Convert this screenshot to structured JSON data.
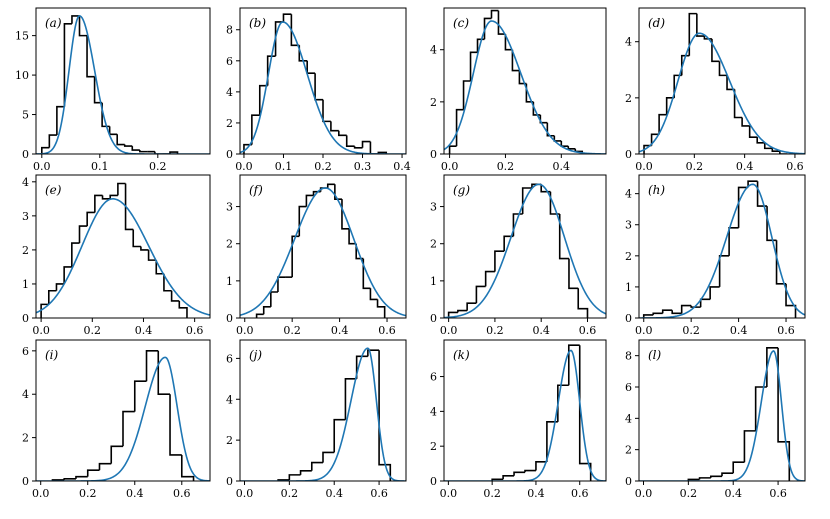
{
  "colors": {
    "histogram": "#000000",
    "fit_curve": "#1f77b4",
    "background": "#ffffff"
  },
  "chart_data": [
    {
      "type": "histogram",
      "label": "(a)",
      "xlim": [
        -0.01,
        0.29
      ],
      "ylim": [
        0,
        18.5
      ],
      "xticks": [
        0.0,
        0.1,
        0.2
      ],
      "xtick_labels": [
        "0.0",
        "0.1",
        "0.2"
      ],
      "yticks": [
        0,
        5,
        10,
        15
      ],
      "ytick_labels": [
        "0",
        "5",
        "10",
        "15"
      ],
      "bin_edges": [
        0.0,
        0.013,
        0.026,
        0.039,
        0.052,
        0.065,
        0.078,
        0.091,
        0.104,
        0.117,
        0.13,
        0.143,
        0.156,
        0.169,
        0.182,
        0.195,
        0.208,
        0.221,
        0.234
      ],
      "counts": [
        0.8,
        2.4,
        6.0,
        16.5,
        17.5,
        15.0,
        9.8,
        6.5,
        3.5,
        2.5,
        1.2,
        1.0,
        0.5,
        0.3,
        0.3,
        0.0,
        0.0,
        0.25
      ],
      "fit": {
        "mu": 0.065,
        "sigma_left": 0.018,
        "sigma_right": 0.026,
        "peak": 17.5
      }
    },
    {
      "type": "histogram",
      "label": "(b)",
      "xlim": [
        -0.01,
        0.41
      ],
      "ylim": [
        0,
        9.4
      ],
      "xticks": [
        0.0,
        0.1,
        0.2,
        0.3,
        0.4
      ],
      "xtick_labels": [
        "0.0",
        "0.1",
        "0.2",
        "0.3",
        "0.4"
      ],
      "yticks": [
        0,
        2,
        4,
        6,
        8
      ],
      "ytick_labels": [
        "0",
        "2",
        "4",
        "6",
        "8"
      ],
      "bin_edges": [
        0.0,
        0.02,
        0.04,
        0.06,
        0.08,
        0.1,
        0.12,
        0.14,
        0.16,
        0.18,
        0.2,
        0.22,
        0.24,
        0.26,
        0.28,
        0.3,
        0.32,
        0.34,
        0.36
      ],
      "counts": [
        0.6,
        2.5,
        4.4,
        6.3,
        8.5,
        9.0,
        7.0,
        6.0,
        5.2,
        3.5,
        2.1,
        1.5,
        1.2,
        0.5,
        0.4,
        0.8,
        0.0,
        0.1
      ],
      "fit": {
        "mu": 0.098,
        "sigma_left": 0.036,
        "sigma_right": 0.062,
        "peak": 8.5
      }
    },
    {
      "type": "histogram",
      "label": "(c)",
      "xlim": [
        -0.02,
        0.56
      ],
      "ylim": [
        0,
        5.6
      ],
      "xticks": [
        0.0,
        0.2,
        0.4
      ],
      "xtick_labels": [
        "0.0",
        "0.2",
        "0.4"
      ],
      "yticks": [
        0,
        2,
        4
      ],
      "ytick_labels": [
        "0",
        "2",
        "4"
      ],
      "bin_edges": [
        0.0,
        0.025,
        0.05,
        0.075,
        0.1,
        0.125,
        0.15,
        0.175,
        0.2,
        0.225,
        0.25,
        0.275,
        0.3,
        0.325,
        0.35,
        0.375,
        0.4,
        0.425,
        0.45,
        0.475
      ],
      "counts": [
        0.3,
        1.7,
        2.8,
        3.9,
        4.4,
        5.2,
        5.5,
        4.6,
        4.0,
        3.2,
        2.7,
        2.0,
        1.5,
        1.2,
        0.7,
        0.5,
        0.3,
        0.2,
        0.1
      ],
      "fit": {
        "mu": 0.15,
        "sigma_left": 0.065,
        "sigma_right": 0.105,
        "peak": 5.1
      }
    },
    {
      "type": "histogram",
      "label": "(d)",
      "xlim": [
        -0.02,
        0.64
      ],
      "ylim": [
        0,
        5.2
      ],
      "xticks": [
        0.0,
        0.2,
        0.4,
        0.6
      ],
      "xtick_labels": [
        "0.0",
        "0.2",
        "0.4",
        "0.6"
      ],
      "yticks": [
        0,
        2,
        4
      ],
      "ytick_labels": [
        "0",
        "2",
        "4"
      ],
      "bin_edges": [
        0.0,
        0.03,
        0.06,
        0.09,
        0.12,
        0.15,
        0.18,
        0.21,
        0.24,
        0.27,
        0.3,
        0.33,
        0.36,
        0.39,
        0.42,
        0.45,
        0.48,
        0.51,
        0.54,
        0.57
      ],
      "counts": [
        0.3,
        0.7,
        1.4,
        2.0,
        2.8,
        3.5,
        5.0,
        4.2,
        4.1,
        3.3,
        2.8,
        2.3,
        1.3,
        1.0,
        0.6,
        0.4,
        0.2,
        0.1,
        0.0
      ],
      "fit": {
        "mu": 0.22,
        "sigma_left": 0.085,
        "sigma_right": 0.12,
        "peak": 4.3
      }
    },
    {
      "type": "histogram",
      "label": "(e)",
      "xlim": [
        -0.02,
        0.66
      ],
      "ylim": [
        0,
        4.2
      ],
      "xticks": [
        0.0,
        0.2,
        0.4,
        0.6
      ],
      "xtick_labels": [
        "0.0",
        "0.2",
        "0.4",
        "0.6"
      ],
      "yticks": [
        0,
        1,
        2,
        3,
        4
      ],
      "ytick_labels": [
        "0",
        "1",
        "2",
        "3",
        "4"
      ],
      "bin_edges": [
        0.0,
        0.03,
        0.06,
        0.09,
        0.12,
        0.15,
        0.18,
        0.21,
        0.24,
        0.27,
        0.3,
        0.33,
        0.36,
        0.39,
        0.42,
        0.45,
        0.48,
        0.51,
        0.54,
        0.57
      ],
      "counts": [
        0.4,
        0.8,
        1.0,
        1.5,
        2.2,
        2.7,
        3.1,
        3.6,
        3.5,
        3.6,
        3.95,
        2.6,
        2.1,
        2.0,
        1.7,
        1.3,
        0.8,
        0.5,
        0.3
      ],
      "fit": {
        "mu": 0.28,
        "sigma_left": 0.12,
        "sigma_right": 0.14,
        "peak": 3.5
      }
    },
    {
      "type": "histogram",
      "label": "(f)",
      "xlim": [
        -0.02,
        0.68
      ],
      "ylim": [
        0,
        3.85
      ],
      "xticks": [
        0.0,
        0.2,
        0.4,
        0.6
      ],
      "xtick_labels": [
        "0.0",
        "0.2",
        "0.4",
        "0.6"
      ],
      "yticks": [
        0,
        1,
        2,
        3
      ],
      "ytick_labels": [
        "0",
        "1",
        "2",
        "3"
      ],
      "bin_edges": [
        0.05,
        0.08,
        0.11,
        0.14,
        0.17,
        0.2,
        0.23,
        0.26,
        0.29,
        0.32,
        0.35,
        0.38,
        0.41,
        0.44,
        0.47,
        0.5,
        0.53,
        0.56,
        0.59
      ],
      "counts": [
        0.1,
        0.3,
        0.7,
        1.1,
        1.1,
        2.2,
        3.0,
        3.3,
        3.4,
        3.5,
        3.6,
        3.2,
        2.4,
        2.0,
        1.6,
        0.8,
        0.5,
        0.3
      ],
      "fit": {
        "mu": 0.34,
        "sigma_left": 0.13,
        "sigma_right": 0.12,
        "peak": 3.5
      }
    },
    {
      "type": "histogram",
      "label": "(g)",
      "xlim": [
        -0.02,
        0.68
      ],
      "ylim": [
        0,
        3.85
      ],
      "xticks": [
        0.0,
        0.2,
        0.4,
        0.6
      ],
      "xtick_labels": [
        "0.0",
        "0.2",
        "0.4",
        "0.6"
      ],
      "yticks": [
        0,
        1,
        2,
        3
      ],
      "ytick_labels": [
        "0",
        "1",
        "2",
        "3"
      ],
      "bin_edges": [
        0.0,
        0.04,
        0.08,
        0.12,
        0.16,
        0.2,
        0.24,
        0.28,
        0.32,
        0.36,
        0.4,
        0.44,
        0.48,
        0.52,
        0.56,
        0.6
      ],
      "counts": [
        0.15,
        0.2,
        0.4,
        0.85,
        1.25,
        1.8,
        2.2,
        2.8,
        3.5,
        3.6,
        3.4,
        2.8,
        1.6,
        0.8,
        0.25
      ],
      "fit": {
        "mu": 0.39,
        "sigma_left": 0.12,
        "sigma_right": 0.11,
        "peak": 3.6
      }
    },
    {
      "type": "histogram",
      "label": "(h)",
      "xlim": [
        -0.02,
        0.68
      ],
      "ylim": [
        0,
        4.6
      ],
      "xticks": [
        0.0,
        0.2,
        0.4,
        0.6
      ],
      "xtick_labels": [
        "0.0",
        "0.2",
        "0.4",
        "0.6"
      ],
      "yticks": [
        0,
        1,
        2,
        3,
        4
      ],
      "ytick_labels": [
        "0",
        "1",
        "2",
        "3",
        "4"
      ],
      "bin_edges": [
        0.0,
        0.04,
        0.08,
        0.12,
        0.16,
        0.2,
        0.24,
        0.28,
        0.32,
        0.36,
        0.4,
        0.44,
        0.48,
        0.52,
        0.56,
        0.6,
        0.64
      ],
      "counts": [
        0.1,
        0.15,
        0.25,
        0.15,
        0.4,
        0.35,
        0.6,
        1.0,
        2.0,
        2.9,
        4.2,
        4.4,
        3.6,
        2.5,
        1.1,
        0.4
      ],
      "fit": {
        "mu": 0.46,
        "sigma_left": 0.11,
        "sigma_right": 0.08,
        "peak": 4.3
      }
    },
    {
      "type": "histogram",
      "label": "(i)",
      "xlim": [
        -0.02,
        0.72
      ],
      "ylim": [
        0,
        6.5
      ],
      "xticks": [
        0.0,
        0.2,
        0.4,
        0.6
      ],
      "xtick_labels": [
        "0.0",
        "0.2",
        "0.4",
        "0.6"
      ],
      "yticks": [
        0,
        2,
        4,
        6
      ],
      "ytick_labels": [
        "0",
        "2",
        "4",
        "6"
      ],
      "bin_edges": [
        0.05,
        0.1,
        0.15,
        0.2,
        0.25,
        0.3,
        0.35,
        0.4,
        0.45,
        0.5,
        0.55,
        0.6,
        0.65
      ],
      "counts": [
        0.05,
        0.1,
        0.2,
        0.5,
        0.8,
        1.6,
        3.2,
        4.6,
        6.0,
        4.0,
        1.2,
        0.2
      ],
      "fit": {
        "mu": 0.53,
        "sigma_left": 0.085,
        "sigma_right": 0.05,
        "peak": 5.7
      }
    },
    {
      "type": "histogram",
      "label": "(j)",
      "xlim": [
        -0.02,
        0.72
      ],
      "ylim": [
        0,
        6.9
      ],
      "xticks": [
        0.0,
        0.2,
        0.4,
        0.6
      ],
      "xtick_labels": [
        "0.0",
        "0.2",
        "0.4",
        "0.6"
      ],
      "yticks": [
        0,
        2,
        4,
        6
      ],
      "ytick_labels": [
        "0",
        "2",
        "4",
        "6"
      ],
      "bin_edges": [
        0.15,
        0.2,
        0.25,
        0.3,
        0.35,
        0.4,
        0.45,
        0.5,
        0.55,
        0.6,
        0.65
      ],
      "counts": [
        0.05,
        0.3,
        0.5,
        0.9,
        1.4,
        3.0,
        5.0,
        6.1,
        6.4,
        0.8
      ],
      "fit": {
        "mu": 0.55,
        "sigma_left": 0.075,
        "sigma_right": 0.038,
        "peak": 6.5
      }
    },
    {
      "type": "histogram",
      "label": "(k)",
      "xlim": [
        -0.02,
        0.72
      ],
      "ylim": [
        0,
        8.1
      ],
      "xticks": [
        0.0,
        0.2,
        0.4,
        0.6
      ],
      "xtick_labels": [
        "0.0",
        "0.2",
        "0.4",
        "0.6"
      ],
      "yticks": [
        0,
        2,
        4,
        6
      ],
      "ytick_labels": [
        "0",
        "2",
        "4",
        "6"
      ],
      "bin_edges": [
        0.2,
        0.25,
        0.3,
        0.35,
        0.4,
        0.45,
        0.5,
        0.55,
        0.6,
        0.65
      ],
      "counts": [
        0.1,
        0.3,
        0.5,
        0.6,
        1.1,
        3.4,
        5.5,
        7.8,
        1.0
      ],
      "fit": {
        "mu": 0.56,
        "sigma_left": 0.058,
        "sigma_right": 0.04,
        "peak": 7.5
      }
    },
    {
      "type": "histogram",
      "label": "(l)",
      "xlim": [
        -0.02,
        0.72
      ],
      "ylim": [
        0,
        9.0
      ],
      "xticks": [
        0.0,
        0.2,
        0.4,
        0.6
      ],
      "xtick_labels": [
        "0.0",
        "0.2",
        "0.4",
        "0.6"
      ],
      "yticks": [
        0,
        2,
        4,
        6,
        8
      ],
      "ytick_labels": [
        "0",
        "2",
        "4",
        "6",
        "8"
      ],
      "bin_edges": [
        0.2,
        0.25,
        0.3,
        0.35,
        0.4,
        0.45,
        0.5,
        0.55,
        0.6,
        0.65
      ],
      "counts": [
        0.1,
        0.2,
        0.3,
        0.5,
        1.2,
        3.2,
        6.0,
        8.5,
        2.5
      ],
      "fit": {
        "mu": 0.58,
        "sigma_left": 0.055,
        "sigma_right": 0.035,
        "peak": 8.3
      }
    }
  ]
}
